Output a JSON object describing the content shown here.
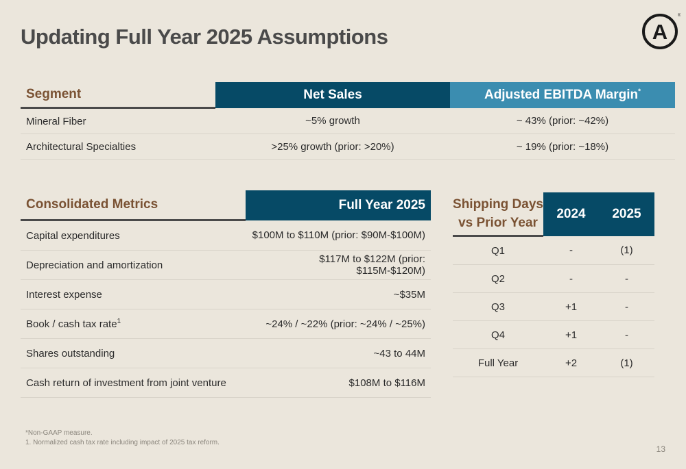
{
  "title": "Updating Full Year 2025 Assumptions",
  "logo": {
    "letter": "A",
    "mark": "®"
  },
  "segment_table": {
    "headers": [
      "Segment",
      "Net Sales",
      "Adjusted EBITDA Margin"
    ],
    "header_note": "*",
    "rows": [
      [
        "Mineral Fiber",
        "~5% growth",
        "~ 43% (prior: ~42%)"
      ],
      [
        "Architectural Specialties",
        ">25% growth (prior: >20%)",
        "~ 19% (prior: ~18%)"
      ]
    ]
  },
  "metrics_table": {
    "headers": [
      "Consolidated Metrics",
      "Full Year 2025"
    ],
    "rows": [
      {
        "label": "Capital expenditures",
        "value": "$100M to $110M (prior: $90M-$100M)"
      },
      {
        "label": "Depreciation and amortization",
        "value": "$117M to $122M (prior: $115M-$120M)"
      },
      {
        "label": "Interest expense",
        "value": "~$35M"
      },
      {
        "label": "Book / cash tax rate",
        "note": "1",
        "value": "~24% / ~22% (prior: ~24% / ~25%)"
      },
      {
        "label": "Shares outstanding",
        "value": "~43 to 44M"
      },
      {
        "label": "Cash return of investment from joint venture",
        "value": "$108M to $116M"
      }
    ]
  },
  "shipping_table": {
    "label_line1": "Shipping Days",
    "label_line2": "vs Prior Year",
    "years": [
      "2024",
      "2025"
    ],
    "rows": [
      [
        "Q1",
        "-",
        "(1)"
      ],
      [
        "Q2",
        "-",
        "-"
      ],
      [
        "Q3",
        "+1",
        "-"
      ],
      [
        "Q4",
        "+1",
        "-"
      ],
      [
        "Full Year",
        "+2",
        "(1)"
      ]
    ]
  },
  "footnotes": [
    "*Non-GAAP measure.",
    "1.  Normalized cash tax rate including impact of 2025 tax reform."
  ],
  "page_number": "13"
}
